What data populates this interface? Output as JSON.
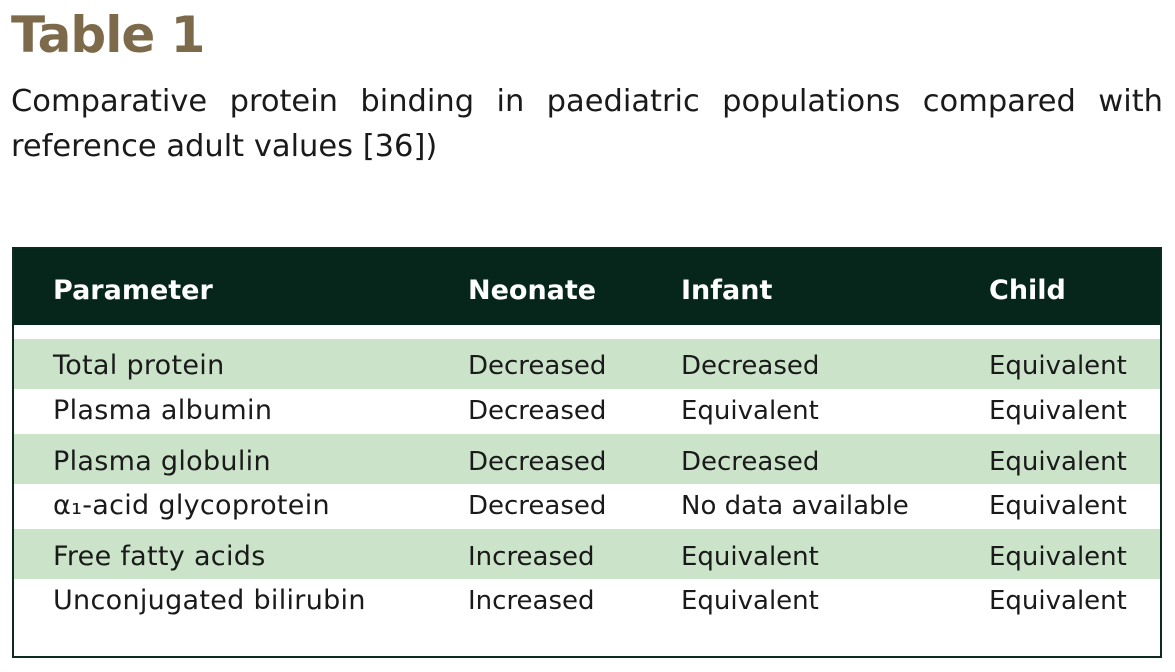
{
  "heading": "Table 1",
  "caption": "Comparative protein binding in paediatric populations compared with reference adult values [36])",
  "colors": {
    "heading": "#7d6a4b",
    "header_background": "#06261c",
    "shaded_row": "#cbe3c9"
  },
  "table": {
    "columns": [
      "Parameter",
      "Neonate",
      "Infant",
      "Child"
    ],
    "rows": [
      [
        "Total protein",
        "Decreased",
        "Decreased",
        "Equivalent"
      ],
      [
        "Plasma albumin",
        "Decreased",
        "Equivalent",
        "Equivalent"
      ],
      [
        "Plasma globulin",
        "Decreased",
        "Decreased",
        "Equivalent"
      ],
      [
        "α₁-acid glycoprotein",
        "Decreased",
        "No data available",
        "Equivalent"
      ],
      [
        "Free fatty acids",
        "Increased",
        "Equivalent",
        "Equivalent"
      ],
      [
        "Unconjugated bilirubin",
        "Increased",
        "Equivalent",
        "Equivalent"
      ]
    ]
  }
}
